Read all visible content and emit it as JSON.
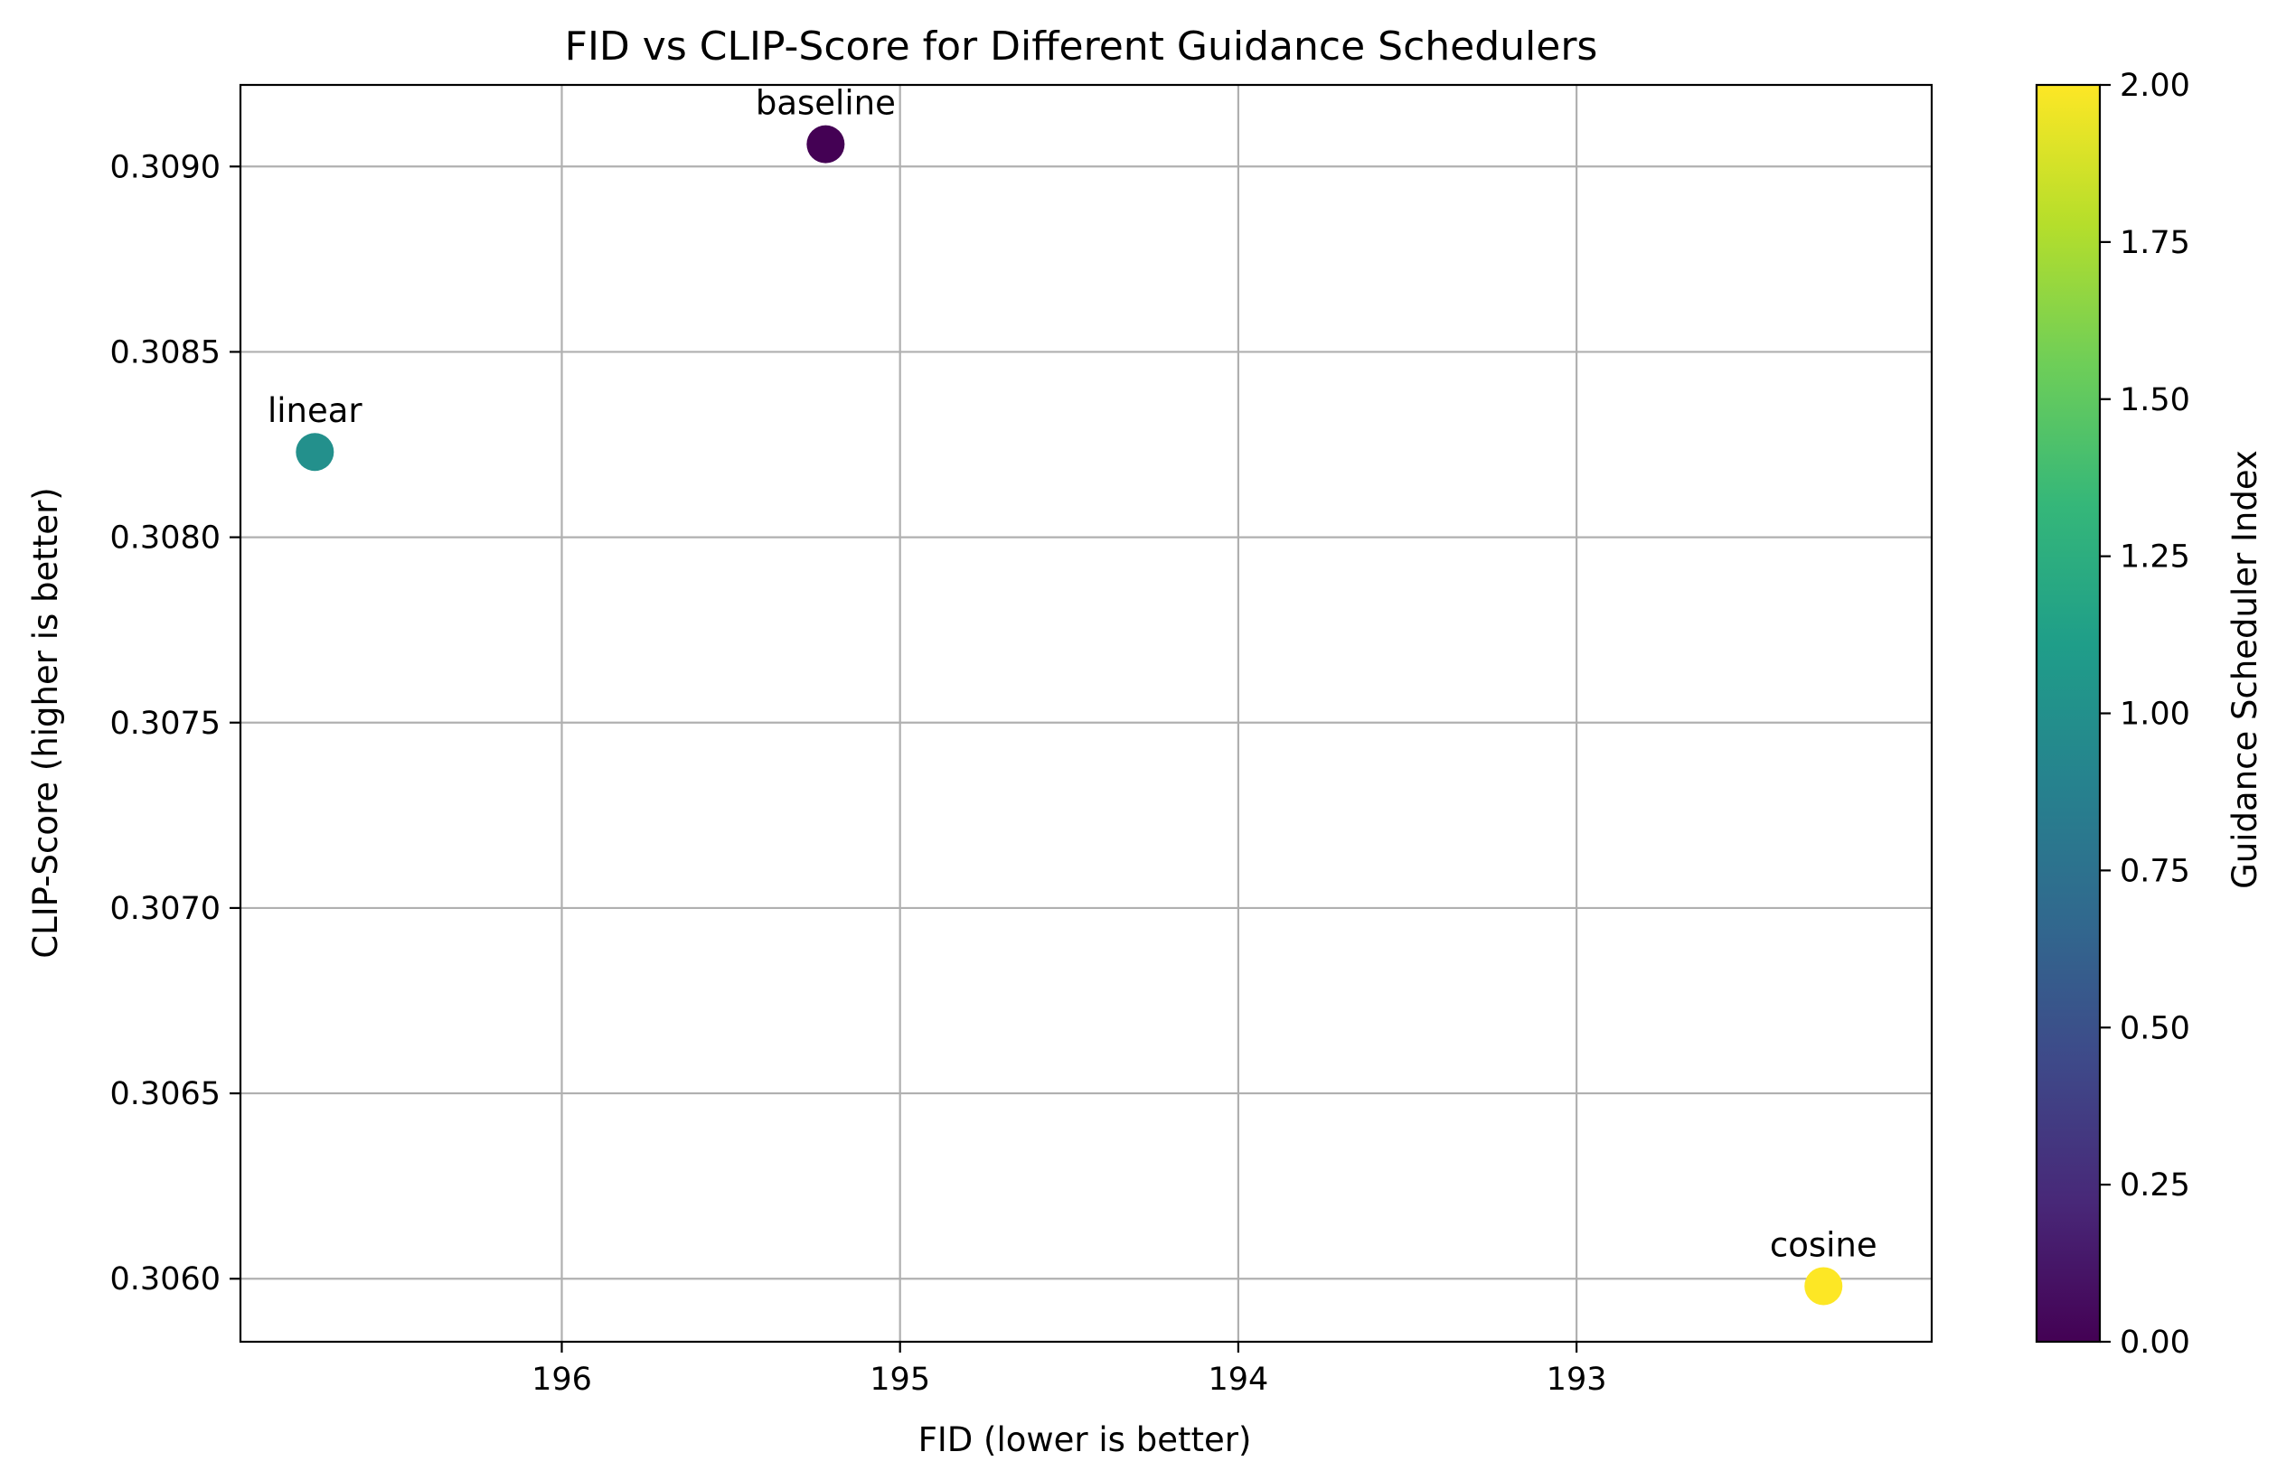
{
  "chart_data": {
    "type": "scatter",
    "title": "FID vs CLIP-Score for Different Guidance Schedulers",
    "xlabel": "FID (lower is better)",
    "ylabel": "CLIP-Score (higher is better)",
    "x_inverted": true,
    "xlim": [
      196.95,
      191.95
    ],
    "ylim": [
      0.30583,
      0.30922
    ],
    "xticks": [
      196,
      195,
      194,
      193
    ],
    "xtick_labels": [
      "196",
      "195",
      "194",
      "193"
    ],
    "yticks": [
      0.306,
      0.3065,
      0.307,
      0.3075,
      0.308,
      0.3085,
      0.309
    ],
    "ytick_labels": [
      "0.3060",
      "0.3065",
      "0.3070",
      "0.3075",
      "0.3080",
      "0.3085",
      "0.3090"
    ],
    "grid": true,
    "colormap": "viridis",
    "points": [
      {
        "label": "baseline",
        "x": 195.22,
        "y": 0.30906,
        "c": 0
      },
      {
        "label": "linear",
        "x": 196.73,
        "y": 0.30823,
        "c": 1
      },
      {
        "label": "cosine",
        "x": 192.27,
        "y": 0.30598,
        "c": 2
      }
    ],
    "colorbar": {
      "label": "Guidance Scheduler Index",
      "range": [
        0,
        2
      ],
      "ticks": [
        0.0,
        0.25,
        0.5,
        0.75,
        1.0,
        1.25,
        1.5,
        1.75,
        2.0
      ],
      "tick_labels": [
        "0.00",
        "0.25",
        "0.50",
        "0.75",
        "1.00",
        "1.25",
        "1.50",
        "1.75",
        "2.00"
      ],
      "colors": [
        "#440154",
        "#482878",
        "#3e4989",
        "#31688e",
        "#26828e",
        "#1f9e89",
        "#35b779",
        "#6ece58",
        "#b5de2b",
        "#fde725"
      ]
    }
  }
}
